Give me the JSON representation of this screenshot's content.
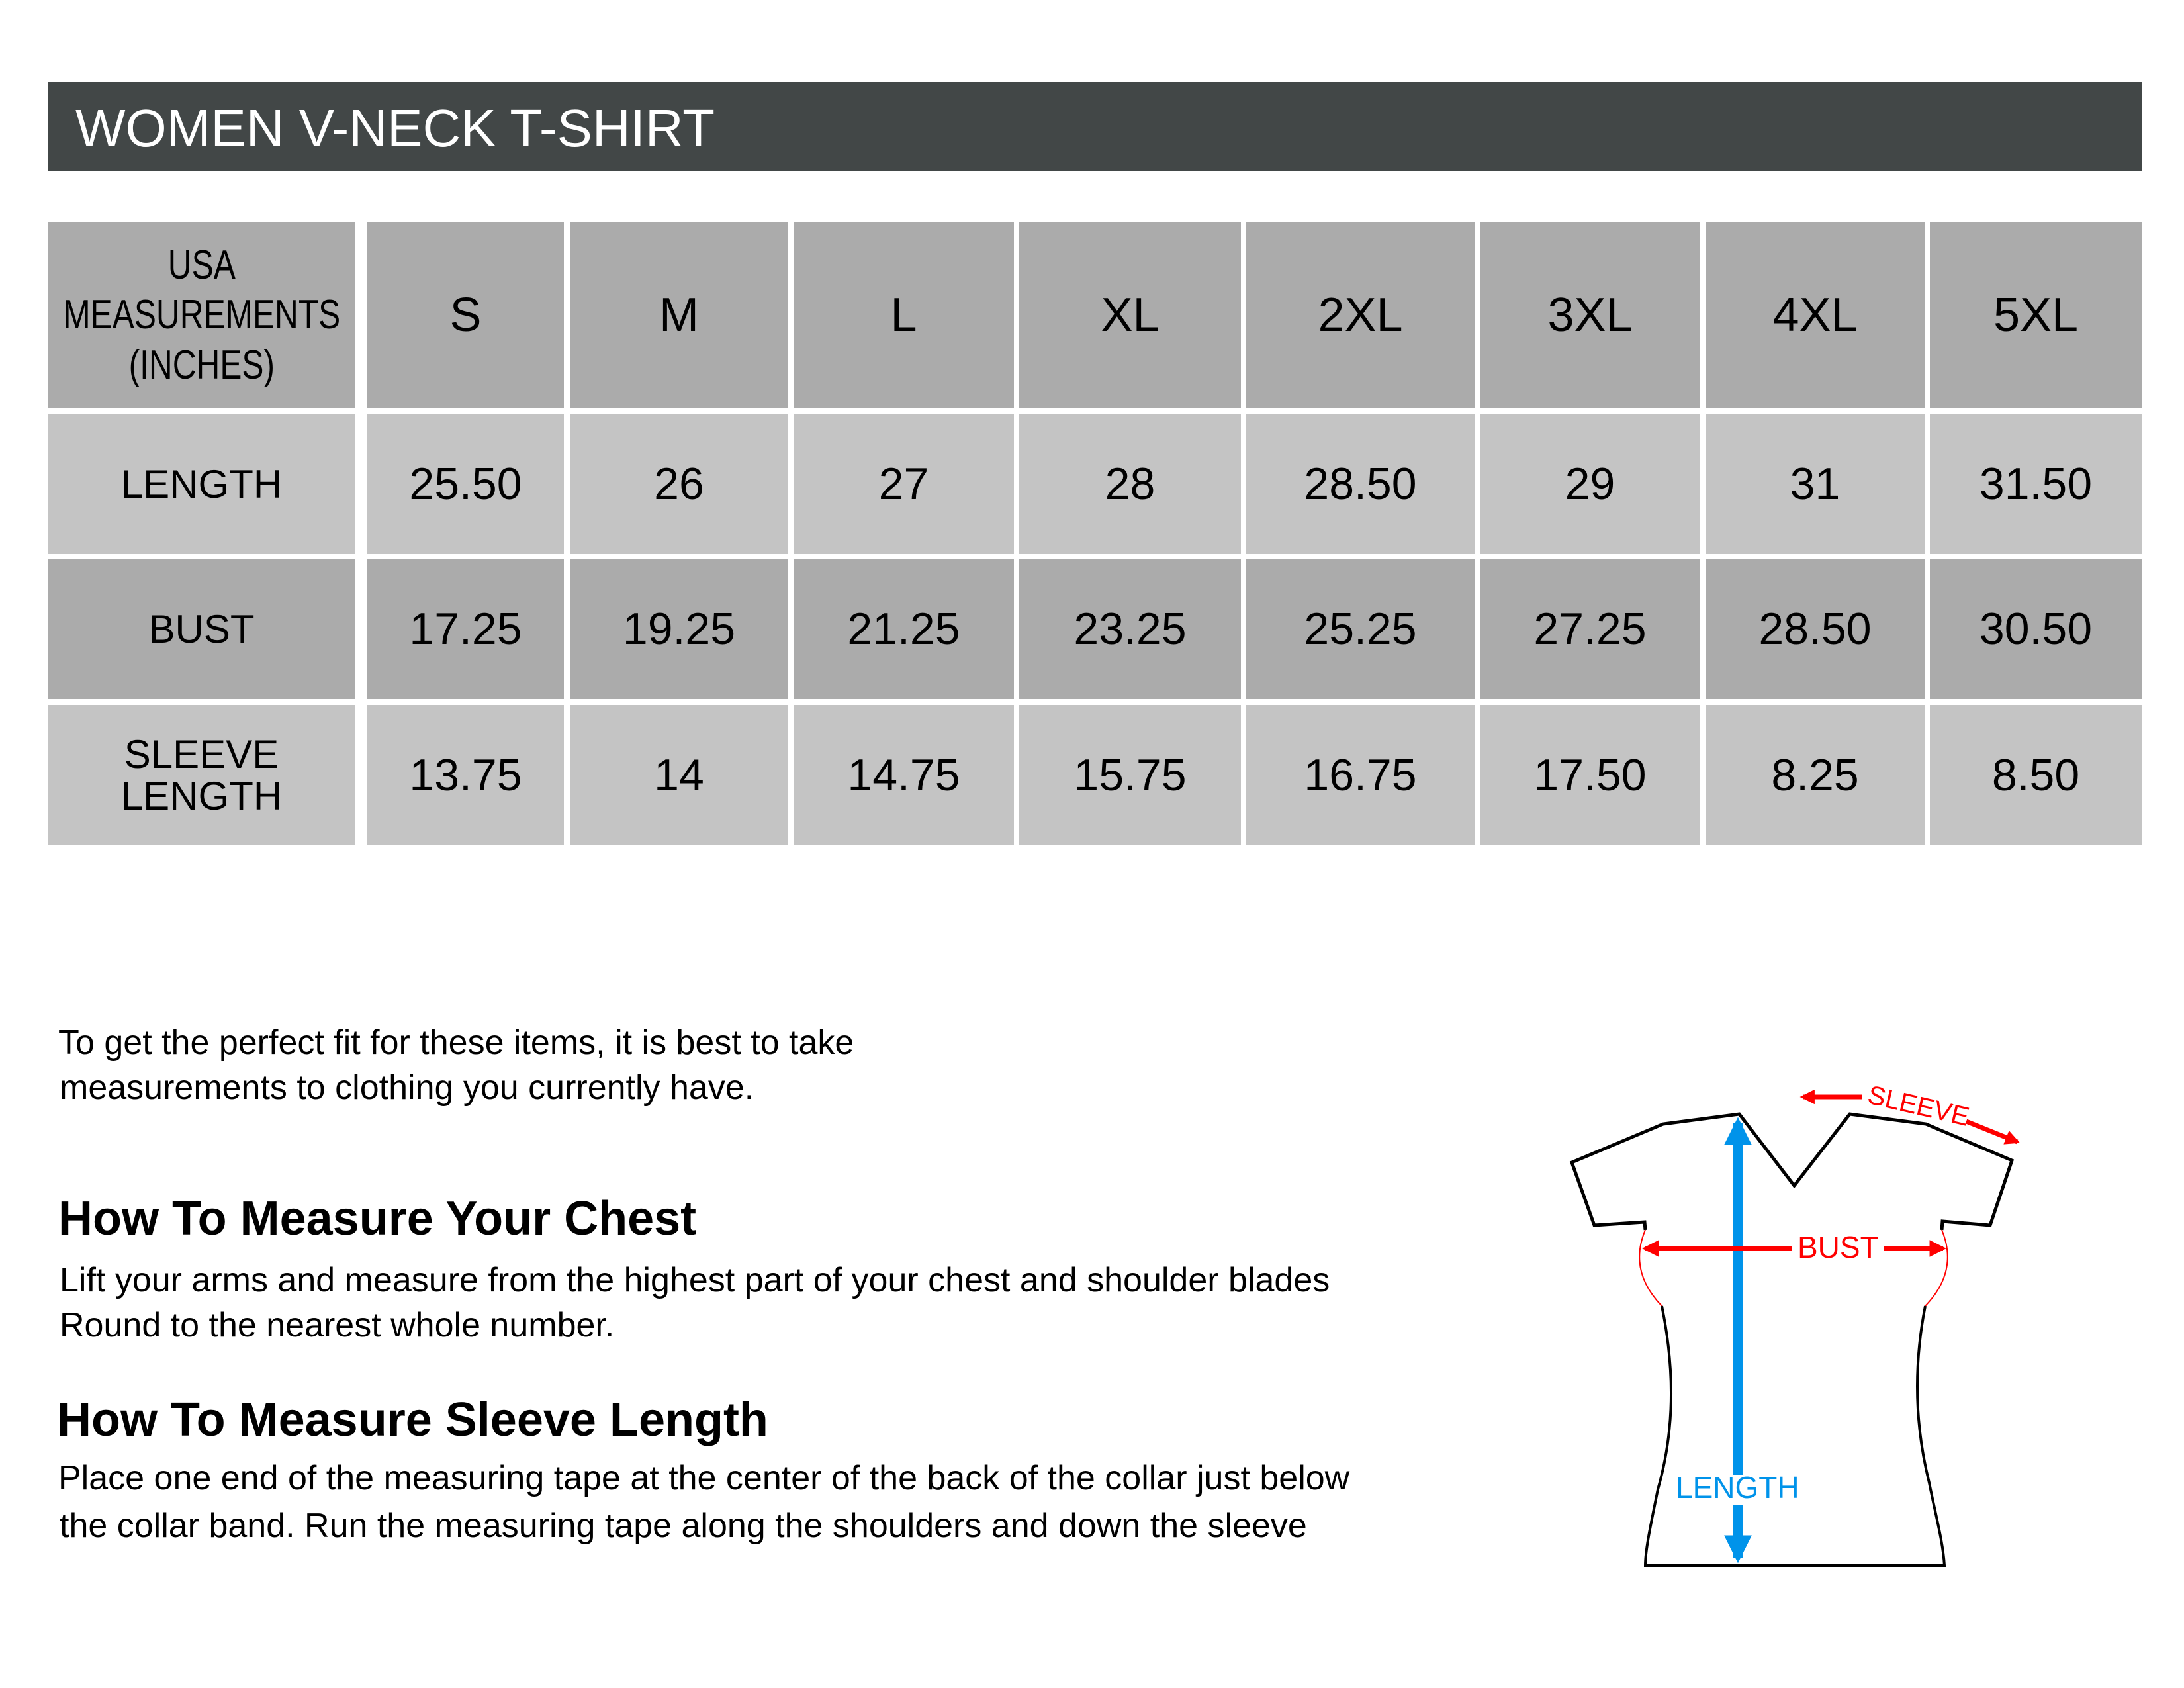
{
  "title": "WOMEN V-NECK T-SHIRT",
  "table": {
    "corner_label": [
      "USA",
      "MEASUREMENTS",
      "(INCHES)"
    ],
    "sizes": [
      "S",
      "M",
      "L",
      "XL",
      "2XL",
      "3XL",
      "4XL",
      "5XL"
    ],
    "rows": [
      {
        "label": "LENGTH",
        "values": [
          "25.50",
          "26",
          "27",
          "28",
          "28.50",
          "29",
          "31",
          "31.50"
        ]
      },
      {
        "label": "BUST",
        "values": [
          "17.25",
          "19.25",
          "21.25",
          "23.25",
          "25.25",
          "27.25",
          "28.50",
          "30.50"
        ]
      },
      {
        "label": "SLEEVE LENGTH",
        "label_lines": [
          "SLEEVE",
          "LENGTH"
        ],
        "values": [
          "13.75",
          "14",
          "14.75",
          "15.75",
          "16.75",
          "17.50",
          "8.25",
          "8.50"
        ]
      }
    ]
  },
  "intro": [
    "To get the perfect fit for these items, it is best to take",
    "measurements to clothing you currently have."
  ],
  "chest": {
    "heading": "How To Measure Your Chest",
    "lines": [
      "Lift your arms and measure from the highest part of your chest and shoulder blades",
      "Round to the nearest whole number."
    ]
  },
  "sleeve": {
    "heading": "How To Measure Sleeve Length",
    "lines": [
      "Place one end of the measuring tape at the center of the back of the collar just below",
      "the collar band. Run the measuring tape along the shoulders and down the sleeve"
    ]
  },
  "diagram": {
    "sleeve_label": "SLEEVE",
    "bust_label": "BUST",
    "length_label": "LENGTH",
    "colors": {
      "red": "#ff0000",
      "blue": "#0093ea",
      "outline": "#000000",
      "header": "#424747",
      "row_dark": "#ababab",
      "row_light": "#c4c4c4"
    }
  }
}
